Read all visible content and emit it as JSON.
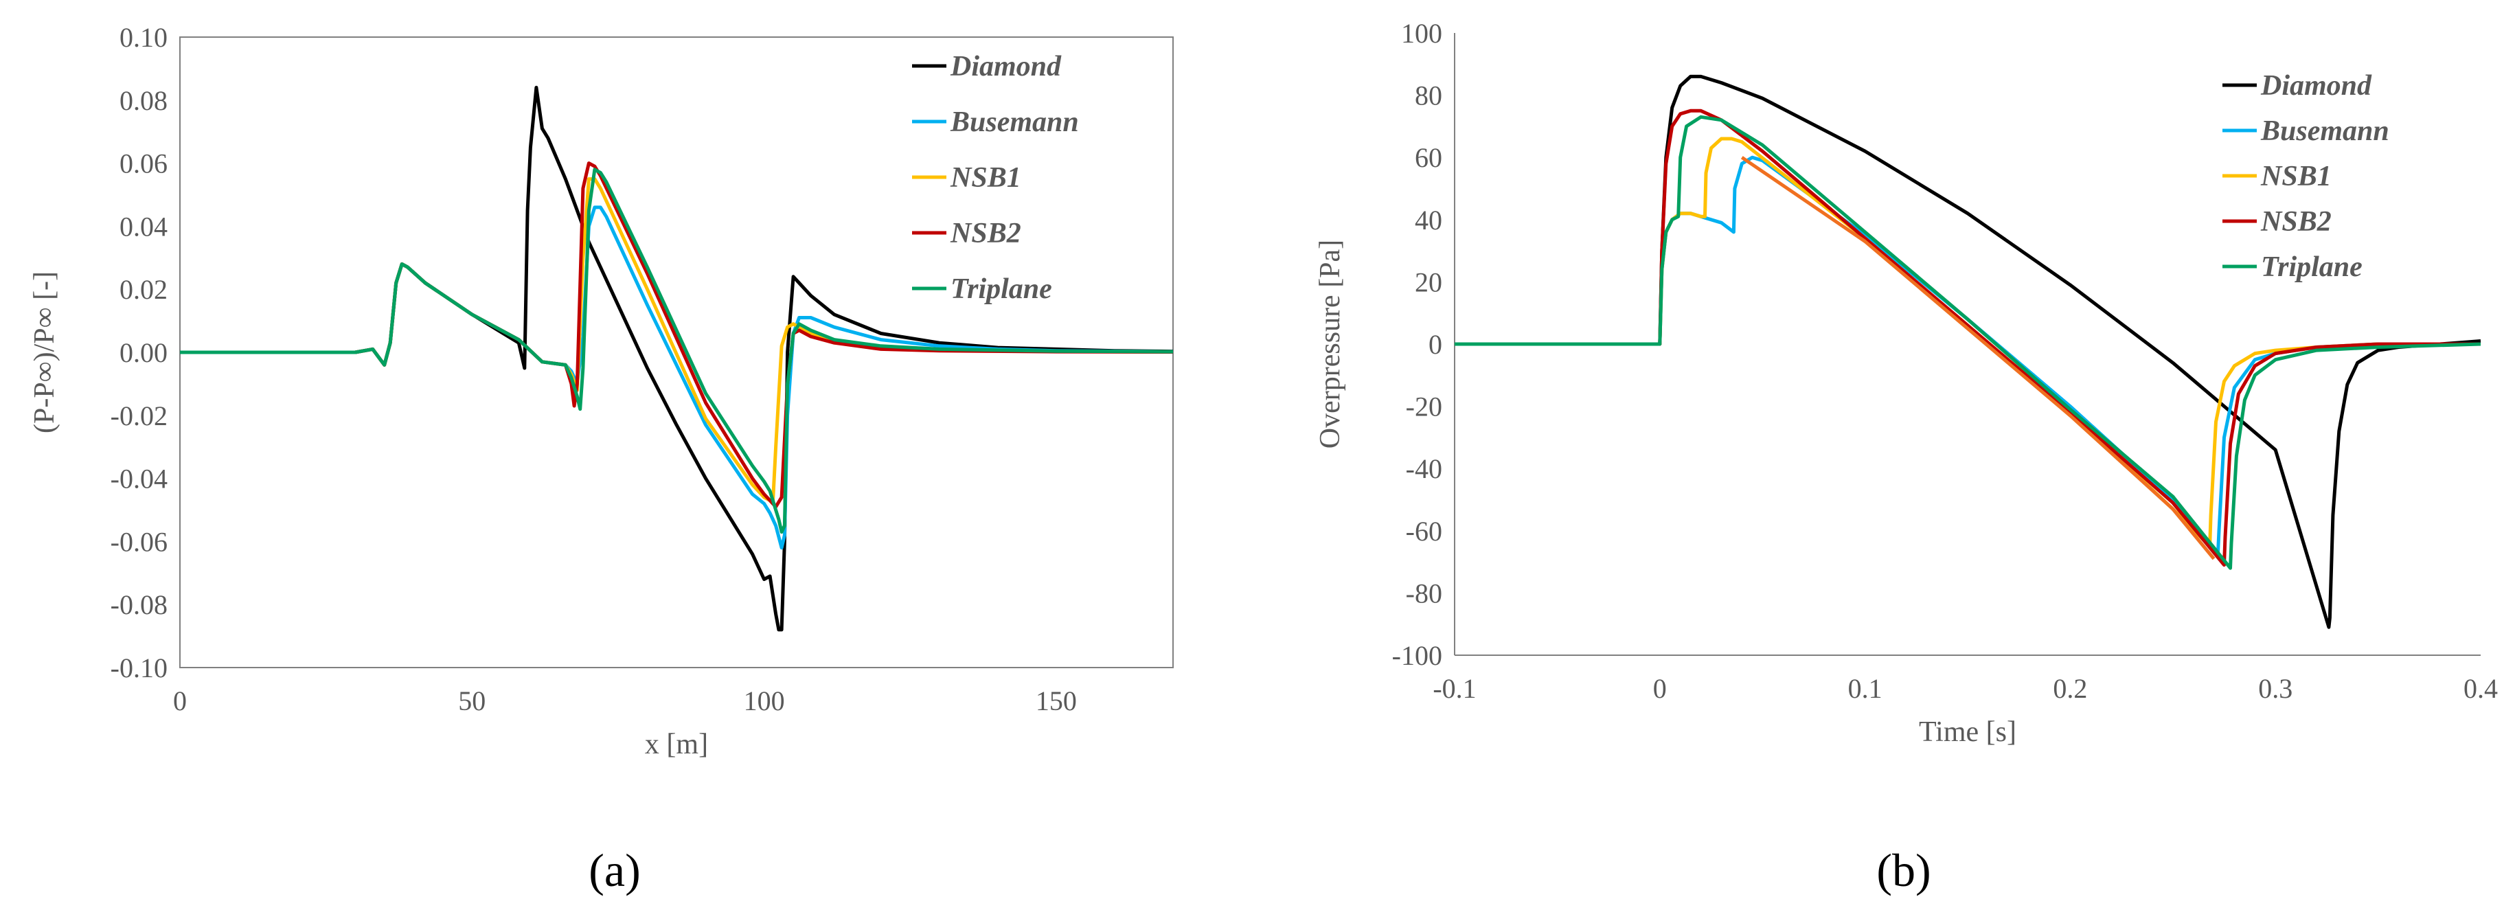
{
  "panels": {
    "a": "(a)",
    "b": "(b)"
  },
  "chart_data": [
    {
      "type": "line",
      "xlabel": "x [m]",
      "ylabel": "(P-P∞)/P∞ [-]",
      "xlim": [
        0,
        170
      ],
      "ylim": [
        -0.1,
        0.1
      ],
      "xticks": [
        0,
        50,
        100,
        150
      ],
      "xtick_labels": [
        "0",
        "50",
        "100",
        "150"
      ],
      "yticks": [
        0.1,
        0.08,
        0.06,
        0.04,
        0.02,
        0.0,
        -0.02,
        -0.04,
        -0.06,
        -0.08,
        -0.1
      ],
      "ytick_labels": [
        "0.10",
        "0.08",
        "0.06",
        "0.04",
        "0.02",
        "0.00",
        "-0.02",
        "-0.04",
        "-0.06",
        "-0.08",
        "-0.10"
      ],
      "legend_position": "top-right",
      "series": [
        {
          "name": "Diamond",
          "color": "#000000",
          "x": [
            0,
            30,
            33,
            35,
            36,
            37,
            38,
            39,
            42,
            50,
            58,
            59,
            59.5,
            60,
            61,
            62,
            63,
            66,
            70,
            75,
            80,
            85,
            90,
            95,
            98,
            100,
            101,
            102,
            102.5,
            103,
            103.5,
            104,
            105,
            106,
            108,
            112,
            120,
            130,
            140,
            150,
            160,
            170
          ],
          "y": [
            0,
            0,
            0.001,
            -0.004,
            0.003,
            0.022,
            0.028,
            0.027,
            0.022,
            0.012,
            0.003,
            -0.005,
            0.045,
            0.065,
            0.084,
            0.071,
            0.068,
            0.055,
            0.035,
            0.015,
            -0.005,
            -0.023,
            -0.04,
            -0.055,
            -0.064,
            -0.072,
            -0.071,
            -0.083,
            -0.088,
            -0.088,
            -0.06,
            0.0,
            0.024,
            0.022,
            0.018,
            0.012,
            0.006,
            0.003,
            0.0015,
            0.001,
            0.0005,
            0.0003
          ]
        },
        {
          "name": "Busemann",
          "color": "#00B0F0",
          "x": [
            0,
            30,
            33,
            35,
            36,
            37,
            38,
            39,
            42,
            50,
            58,
            62,
            66,
            67,
            68,
            69,
            70,
            71,
            72,
            73,
            80,
            90,
            98,
            100,
            101,
            102,
            103,
            103.5,
            104,
            105,
            106,
            108,
            112,
            120,
            130,
            140,
            150,
            170
          ],
          "y": [
            0,
            0,
            0.001,
            -0.004,
            0.003,
            0.022,
            0.028,
            0.027,
            0.022,
            0.012,
            0.004,
            -0.003,
            -0.004,
            -0.006,
            -0.01,
            0.005,
            0.04,
            0.046,
            0.046,
            0.043,
            0.015,
            -0.023,
            -0.045,
            -0.048,
            -0.051,
            -0.055,
            -0.062,
            -0.058,
            -0.02,
            0.006,
            0.011,
            0.011,
            0.008,
            0.004,
            0.002,
            0.001,
            0.0005,
            0.0002
          ]
        },
        {
          "name": "NSB1",
          "color": "#FFC000",
          "x": [
            0,
            30,
            33,
            35,
            36,
            37,
            38,
            39,
            42,
            50,
            58,
            62,
            66,
            67,
            68,
            69,
            70,
            71,
            72,
            80,
            90,
            98,
            100,
            101,
            101.5,
            102,
            103,
            104,
            105,
            106,
            108,
            112,
            120,
            130,
            150,
            170
          ],
          "y": [
            0,
            0,
            0.001,
            -0.004,
            0.003,
            0.022,
            0.028,
            0.027,
            0.022,
            0.012,
            0.004,
            -0.003,
            -0.004,
            -0.007,
            -0.012,
            0.03,
            0.055,
            0.055,
            0.052,
            0.02,
            -0.021,
            -0.042,
            -0.046,
            -0.047,
            -0.048,
            -0.03,
            0.002,
            0.008,
            0.009,
            0.008,
            0.006,
            0.003,
            0.0015,
            0.0008,
            0.0003,
            0.0001
          ]
        },
        {
          "name": "NSB2",
          "color": "#C00000",
          "x": [
            0,
            30,
            33,
            35,
            36,
            37,
            38,
            39,
            42,
            50,
            58,
            62,
            66,
            67,
            67.5,
            68,
            69,
            70,
            71,
            72,
            80,
            90,
            98,
            100,
            101,
            102,
            103,
            104,
            105,
            106,
            108,
            112,
            120,
            130,
            150,
            170
          ],
          "y": [
            0,
            0,
            0.001,
            -0.004,
            0.003,
            0.022,
            0.028,
            0.027,
            0.022,
            0.012,
            0.004,
            -0.003,
            -0.004,
            -0.01,
            -0.017,
            -0.01,
            0.052,
            0.06,
            0.059,
            0.056,
            0.025,
            -0.016,
            -0.04,
            -0.045,
            -0.047,
            -0.049,
            -0.046,
            -0.01,
            0.006,
            0.007,
            0.005,
            0.003,
            0.001,
            0.0005,
            0.0002,
            0.0001
          ]
        },
        {
          "name": "Triplane",
          "color": "#00A060",
          "x": [
            0,
            30,
            33,
            35,
            36,
            37,
            38,
            39,
            42,
            50,
            58,
            62,
            66,
            67,
            68,
            68.5,
            69,
            70,
            71,
            72,
            73,
            80,
            90,
            98,
            100,
            101,
            102,
            102.5,
            103,
            103.5,
            104,
            105,
            106,
            108,
            112,
            120,
            130,
            150,
            170
          ],
          "y": [
            0,
            0,
            0.001,
            -0.004,
            0.003,
            0.022,
            0.028,
            0.027,
            0.022,
            0.012,
            0.004,
            -0.003,
            -0.004,
            -0.008,
            -0.014,
            -0.018,
            -0.005,
            0.045,
            0.058,
            0.057,
            0.054,
            0.027,
            -0.013,
            -0.036,
            -0.041,
            -0.044,
            -0.05,
            -0.053,
            -0.057,
            -0.055,
            -0.01,
            0.006,
            0.009,
            0.007,
            0.004,
            0.002,
            0.001,
            0.0004,
            0.0002
          ]
        }
      ]
    },
    {
      "type": "line",
      "xlabel": "Time [s]",
      "ylabel": "Overpressure  [Pa]",
      "xlim": [
        -0.1,
        0.4
      ],
      "ylim": [
        -100,
        100
      ],
      "xticks": [
        -0.1,
        0,
        0.1,
        0.2,
        0.3,
        0.4
      ],
      "xtick_labels": [
        "-0.1",
        "0",
        "0.1",
        "0.2",
        "0.3",
        "0.4"
      ],
      "yticks": [
        100,
        80,
        60,
        40,
        20,
        0,
        -20,
        -40,
        -60,
        -80,
        -100
      ],
      "ytick_labels": [
        "100",
        "80",
        "60",
        "40",
        "20",
        "0",
        "-20",
        "-40",
        "-60",
        "-80",
        "-100"
      ],
      "legend_position": "top-right",
      "series": [
        {
          "name": "Diamond",
          "color": "#000000",
          "x": [
            -0.1,
            0,
            0.001,
            0.003,
            0.006,
            0.01,
            0.015,
            0.02,
            0.03,
            0.05,
            0.1,
            0.15,
            0.2,
            0.25,
            0.3,
            0.326,
            0.3265,
            0.328,
            0.331,
            0.335,
            0.34,
            0.35,
            0.36,
            0.38,
            0.4
          ],
          "y": [
            0,
            0,
            30,
            60,
            76,
            83,
            86,
            86,
            84,
            79,
            62,
            42,
            19,
            -6,
            -34,
            -91,
            -88,
            -55,
            -28,
            -13,
            -6,
            -2,
            -1,
            0,
            1
          ]
        },
        {
          "name": "Busemann",
          "color": "#00B0F0",
          "x": [
            -0.1,
            0,
            0.001,
            0.003,
            0.006,
            0.01,
            0.015,
            0.02,
            0.03,
            0.036,
            0.0365,
            0.04,
            0.045,
            0.05,
            0.1,
            0.15,
            0.2,
            0.25,
            0.272,
            0.2725,
            0.275,
            0.28,
            0.29,
            0.3,
            0.32,
            0.35,
            0.4
          ],
          "y": [
            0,
            0,
            24,
            36,
            40,
            42,
            42,
            41,
            39,
            36,
            50,
            58,
            60,
            59,
            35,
            8,
            -20,
            -50,
            -67,
            -60,
            -30,
            -14,
            -5,
            -3,
            -1,
            0,
            0
          ]
        },
        {
          "name": "NSB1",
          "color": "#FFC000",
          "x": [
            -0.1,
            0,
            0.001,
            0.003,
            0.006,
            0.01,
            0.015,
            0.02,
            0.022,
            0.0225,
            0.025,
            0.03,
            0.035,
            0.04,
            0.1,
            0.15,
            0.2,
            0.25,
            0.268,
            0.2685,
            0.271,
            0.275,
            0.28,
            0.29,
            0.3,
            0.32,
            0.35,
            0.4
          ],
          "y": [
            0,
            0,
            24,
            36,
            40,
            42,
            42,
            41,
            41,
            55,
            63,
            66,
            66,
            65,
            34,
            6,
            -22,
            -53,
            -65,
            -55,
            -25,
            -12,
            -7,
            -3,
            -2,
            -1,
            0,
            0
          ]
        },
        {
          "name": "NSB2",
          "color": "#C00000",
          "x": [
            -0.1,
            0,
            0.001,
            0.003,
            0.006,
            0.01,
            0.015,
            0.02,
            0.03,
            0.05,
            0.1,
            0.15,
            0.2,
            0.25,
            0.275,
            0.2755,
            0.278,
            0.282,
            0.29,
            0.3,
            0.32,
            0.35,
            0.4
          ],
          "y": [
            0,
            0,
            30,
            58,
            70,
            74,
            75,
            75,
            72,
            62,
            34,
            6,
            -22,
            -51,
            -71,
            -62,
            -32,
            -16,
            -7,
            -3,
            -1,
            0,
            0
          ]
        },
        {
          "name": "Triplane",
          "color": "#00A060",
          "x": [
            -0.1,
            0,
            0.001,
            0.003,
            0.006,
            0.009,
            0.01,
            0.013,
            0.02,
            0.03,
            0.05,
            0.1,
            0.15,
            0.2,
            0.25,
            0.278,
            0.2785,
            0.281,
            0.285,
            0.29,
            0.3,
            0.32,
            0.35,
            0.4
          ],
          "y": [
            0,
            0,
            24,
            36,
            40,
            41,
            60,
            70,
            73,
            72,
            64,
            36,
            8,
            -21,
            -49,
            -72,
            -64,
            -36,
            -18,
            -10,
            -5,
            -2,
            -1,
            0
          ]
        },
        {
          "name": "",
          "color": "#F07020",
          "x": [
            0.04,
            0.1,
            0.15,
            0.2,
            0.25,
            0.27
          ],
          "y": [
            60,
            33,
            5,
            -23,
            -53,
            -69
          ]
        }
      ]
    }
  ]
}
